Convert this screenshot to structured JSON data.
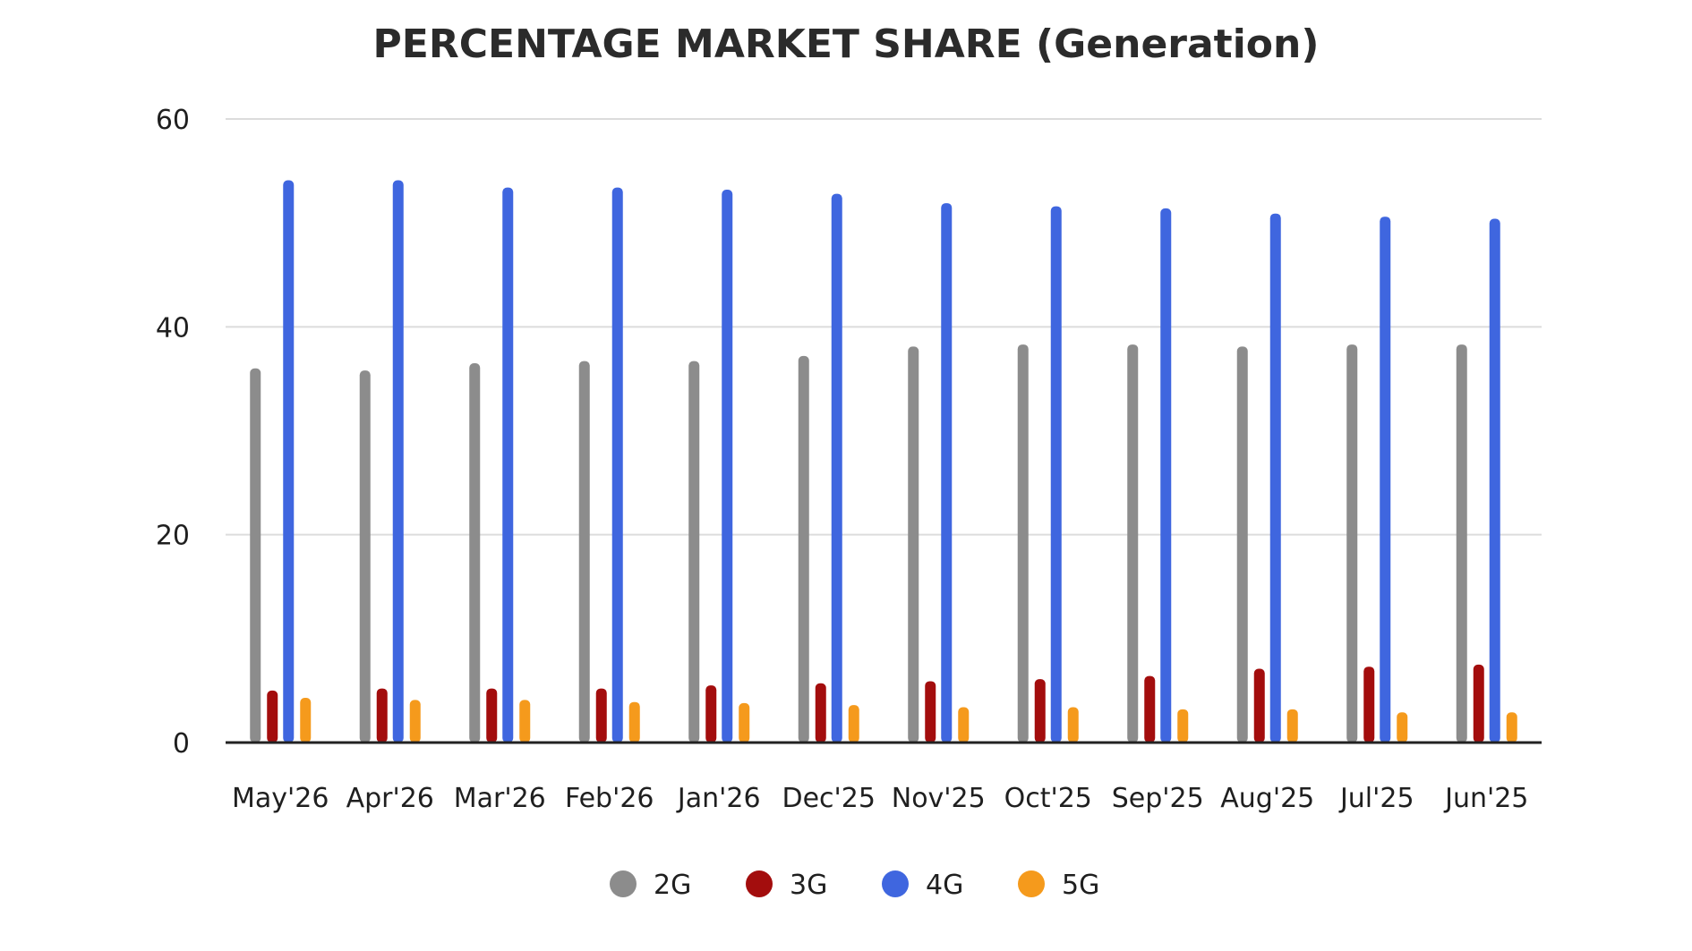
{
  "chart_data": {
    "type": "bar",
    "title": "PERCENTAGE MARKET SHARE (Generation)",
    "xlabel": "",
    "ylabel": "",
    "ylim": [
      0,
      60
    ],
    "yticks": [
      0,
      20,
      40,
      60
    ],
    "grid": true,
    "legend_position": "bottom",
    "categories": [
      "May'26",
      "Apr'26",
      "Mar'26",
      "Feb'26",
      "Jan'26",
      "Dec'25",
      "Nov'25",
      "Oct'25",
      "Sep'25",
      "Aug'25",
      "Jul'25",
      "Jun'25"
    ],
    "series": [
      {
        "name": "2G",
        "color": "#8c8c8c",
        "values": [
          36.0,
          35.8,
          36.5,
          36.7,
          36.7,
          37.2,
          38.1,
          38.3,
          38.3,
          38.1,
          38.3,
          38.3
        ]
      },
      {
        "name": "3G",
        "color": "#a30d0d",
        "values": [
          5.0,
          5.2,
          5.2,
          5.2,
          5.5,
          5.7,
          5.9,
          6.1,
          6.4,
          7.1,
          7.3,
          7.5
        ]
      },
      {
        "name": "4G",
        "color": "#3f66df",
        "values": [
          54.1,
          54.1,
          53.4,
          53.4,
          53.2,
          52.8,
          51.9,
          51.6,
          51.4,
          50.9,
          50.6,
          50.4
        ]
      },
      {
        "name": "5G",
        "color": "#f59a1c",
        "values": [
          4.3,
          4.1,
          4.1,
          3.9,
          3.8,
          3.6,
          3.4,
          3.4,
          3.2,
          3.2,
          2.9,
          2.9
        ]
      }
    ]
  }
}
